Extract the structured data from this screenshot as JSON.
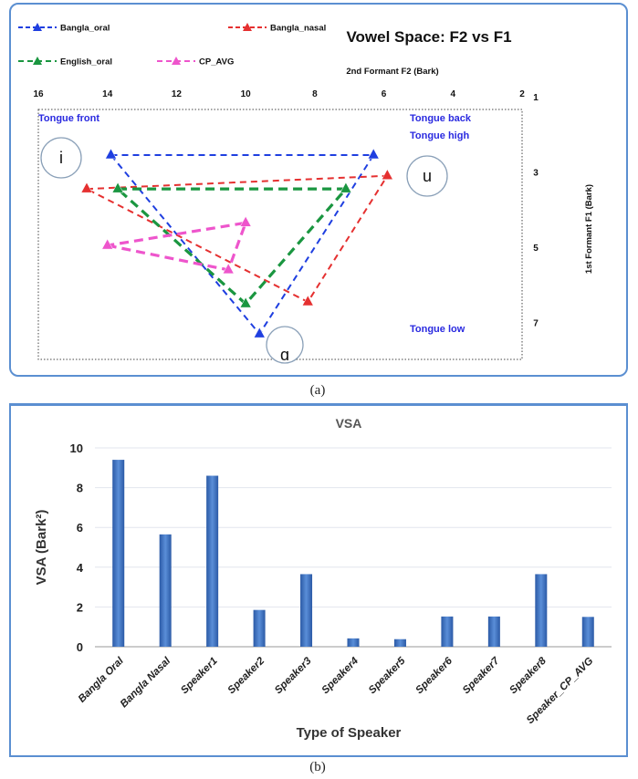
{
  "captions": {
    "a": "(a)",
    "b": "(b)"
  },
  "chart_data": [
    {
      "type": "line",
      "title": "Vowel Space: F2 vs F1",
      "xlabel": "2nd Formant F2 (Bark)",
      "ylabel": "1st Formant F1 (Bark)",
      "xlim": [
        16,
        2
      ],
      "ylim": [
        1,
        8
      ],
      "x_reversed": true,
      "y_reversed": true,
      "x_ticks": [
        16,
        14,
        12,
        10,
        8,
        6,
        4,
        2
      ],
      "y_ticks": [
        1,
        3,
        5,
        7
      ],
      "legend": "top-left",
      "series": [
        {
          "name": "Bangla_oral",
          "color": "#1f3fe0",
          "points": [
            [
              13.9,
              2.55
            ],
            [
              6.3,
              2.55
            ],
            [
              9.6,
              7.3
            ],
            [
              13.9,
              2.55
            ]
          ]
        },
        {
          "name": "Bangla_nasal",
          "color": "#e53030",
          "points": [
            [
              14.6,
              3.45
            ],
            [
              5.9,
              3.1
            ],
            [
              8.2,
              6.45
            ],
            [
              14.6,
              3.45
            ]
          ]
        },
        {
          "name": "English_oral",
          "color": "#1a9640",
          "points": [
            [
              13.7,
              3.45
            ],
            [
              7.1,
              3.45
            ],
            [
              10.0,
              6.5
            ],
            [
              13.7,
              3.45
            ]
          ]
        },
        {
          "name": "CP_AVG",
          "color": "#ee55cc",
          "points": [
            [
              14.0,
              4.95
            ],
            [
              10.5,
              5.6
            ],
            [
              10.0,
              4.35
            ],
            [
              14.0,
              4.95
            ]
          ]
        }
      ],
      "annotations": {
        "tongue_front": "Tongue front",
        "tongue_back": "Tongue back",
        "tongue_high": "Tongue high",
        "tongue_low": "Tongue low",
        "vowel_i": "i",
        "vowel_u": "u",
        "vowel_a": "ɑ"
      }
    },
    {
      "type": "bar",
      "title": "VSA",
      "xlabel": "Type of Speaker",
      "ylabel": "VSA (Bark²)",
      "ylim": [
        0,
        10
      ],
      "y_ticks": [
        0,
        2,
        4,
        6,
        8,
        10
      ],
      "grid": true,
      "color": "#3a6fc0",
      "categories": [
        "Bangla Oral",
        "Bangla Nasal",
        "Speaker1",
        "Speaker2",
        "Speaker3",
        "Speaker4",
        "Speaker5",
        "Speaker6",
        "Speaker7",
        "Speaker8",
        "Speaker_CP_AVG"
      ],
      "values": [
        9.4,
        5.65,
        8.6,
        1.85,
        3.65,
        0.42,
        0.38,
        1.52,
        1.52,
        3.65,
        1.5
      ]
    }
  ]
}
